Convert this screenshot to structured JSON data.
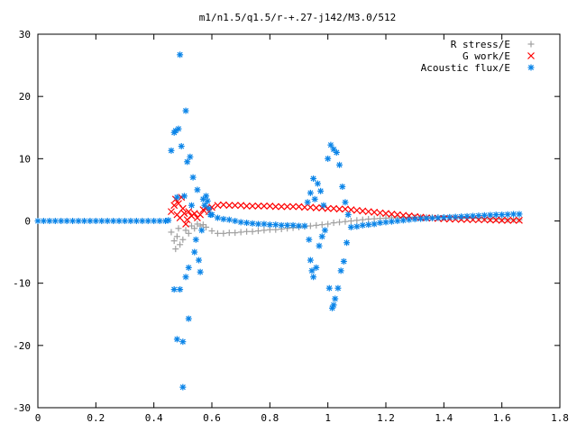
{
  "chart_data": {
    "type": "scatter",
    "title": "m1/n1.5/q1.5/r-+.27-j142/M3.0/512",
    "xlabel": "",
    "ylabel": "",
    "xlim": [
      0,
      1.8
    ],
    "ylim": [
      -30,
      30
    ],
    "x_ticks": [
      0,
      0.2,
      0.4,
      0.6,
      0.8,
      1,
      1.2,
      1.4,
      1.6,
      1.8
    ],
    "x_tick_labels": [
      "0",
      "0.2",
      "0.4",
      "0.6",
      "0.8",
      "1",
      "1.2",
      "1.4",
      "1.6",
      "1.8"
    ],
    "y_ticks": [
      -30,
      -20,
      -10,
      0,
      10,
      20,
      30
    ],
    "y_tick_labels": [
      "-30",
      "-20",
      "-10",
      "0",
      "10",
      "20",
      "30"
    ],
    "grid": false,
    "legend_position": "top-right",
    "series": [
      {
        "name": "R stress/E",
        "marker": "plus",
        "color": "#a0a0a0",
        "points": [
          [
            0.46,
            -1.8
          ],
          [
            0.47,
            -3.2
          ],
          [
            0.475,
            -4.5
          ],
          [
            0.48,
            -2.5
          ],
          [
            0.485,
            -1.2
          ],
          [
            0.49,
            -3.8
          ],
          [
            0.5,
            -3.0
          ],
          [
            0.51,
            -1.5
          ],
          [
            0.52,
            -2.0
          ],
          [
            0.53,
            -0.8
          ],
          [
            0.54,
            -1.2
          ],
          [
            0.55,
            -0.5
          ],
          [
            0.56,
            -0.8
          ],
          [
            0.57,
            -0.6
          ],
          [
            0.58,
            -1.0
          ],
          [
            0.6,
            -1.6
          ],
          [
            0.62,
            -2.0
          ],
          [
            0.64,
            -2.0
          ],
          [
            0.66,
            -1.9
          ],
          [
            0.68,
            -1.9
          ],
          [
            0.7,
            -1.8
          ],
          [
            0.72,
            -1.7
          ],
          [
            0.74,
            -1.7
          ],
          [
            0.76,
            -1.6
          ],
          [
            0.78,
            -1.5
          ],
          [
            0.8,
            -1.4
          ],
          [
            0.82,
            -1.4
          ],
          [
            0.84,
            -1.3
          ],
          [
            0.86,
            -1.2
          ],
          [
            0.88,
            -1.1
          ],
          [
            0.9,
            -1.0
          ],
          [
            0.92,
            -0.9
          ],
          [
            0.94,
            -0.8
          ],
          [
            0.96,
            -0.7
          ],
          [
            0.98,
            -0.6
          ],
          [
            1.0,
            -0.5
          ],
          [
            1.02,
            -0.3
          ],
          [
            1.04,
            -0.2
          ],
          [
            1.06,
            -0.1
          ],
          [
            1.08,
            0.0
          ],
          [
            1.1,
            0.1
          ],
          [
            1.12,
            0.2
          ],
          [
            1.14,
            0.3
          ],
          [
            1.16,
            0.35
          ],
          [
            1.18,
            0.4
          ],
          [
            1.2,
            0.45
          ],
          [
            1.22,
            0.5
          ],
          [
            1.24,
            0.5
          ],
          [
            1.26,
            0.55
          ],
          [
            1.28,
            0.6
          ],
          [
            1.3,
            0.6
          ],
          [
            1.32,
            0.6
          ],
          [
            1.34,
            0.6
          ],
          [
            1.36,
            0.6
          ],
          [
            1.38,
            0.6
          ],
          [
            1.4,
            0.6
          ],
          [
            1.42,
            0.6
          ],
          [
            1.44,
            0.55
          ],
          [
            1.46,
            0.5
          ],
          [
            1.48,
            0.5
          ],
          [
            1.5,
            0.45
          ],
          [
            1.52,
            0.4
          ],
          [
            1.54,
            0.35
          ],
          [
            1.56,
            0.3
          ],
          [
            1.58,
            0.3
          ],
          [
            1.6,
            0.25
          ],
          [
            1.62,
            0.2
          ],
          [
            1.64,
            0.2
          ],
          [
            1.66,
            0.2
          ]
        ]
      },
      {
        "name": "G work/E",
        "marker": "cross",
        "color": "#ff0000",
        "points": [
          [
            0.46,
            1.5
          ],
          [
            0.47,
            2.5
          ],
          [
            0.475,
            3.5
          ],
          [
            0.48,
            1.0
          ],
          [
            0.485,
            2.8
          ],
          [
            0.49,
            0.5
          ],
          [
            0.495,
            3.8
          ],
          [
            0.5,
            2.0
          ],
          [
            0.505,
            1.2
          ],
          [
            0.51,
            -0.5
          ],
          [
            0.515,
            0.2
          ],
          [
            0.52,
            1.5
          ],
          [
            0.53,
            0.8
          ],
          [
            0.54,
            1.2
          ],
          [
            0.55,
            0.5
          ],
          [
            0.56,
            1.0
          ],
          [
            0.57,
            1.8
          ],
          [
            0.58,
            2.0
          ],
          [
            0.59,
            1.5
          ],
          [
            0.6,
            2.2
          ],
          [
            0.62,
            2.5
          ],
          [
            0.64,
            2.6
          ],
          [
            0.66,
            2.5
          ],
          [
            0.68,
            2.5
          ],
          [
            0.7,
            2.5
          ],
          [
            0.72,
            2.4
          ],
          [
            0.74,
            2.4
          ],
          [
            0.76,
            2.4
          ],
          [
            0.78,
            2.4
          ],
          [
            0.8,
            2.4
          ],
          [
            0.82,
            2.3
          ],
          [
            0.84,
            2.3
          ],
          [
            0.86,
            2.3
          ],
          [
            0.88,
            2.3
          ],
          [
            0.9,
            2.3
          ],
          [
            0.92,
            2.2
          ],
          [
            0.94,
            2.2
          ],
          [
            0.96,
            2.1
          ],
          [
            0.98,
            2.1
          ],
          [
            1.0,
            2.0
          ],
          [
            1.02,
            2.0
          ],
          [
            1.04,
            1.9
          ],
          [
            1.06,
            1.9
          ],
          [
            1.08,
            1.8
          ],
          [
            1.1,
            1.7
          ],
          [
            1.12,
            1.6
          ],
          [
            1.14,
            1.5
          ],
          [
            1.16,
            1.4
          ],
          [
            1.18,
            1.3
          ],
          [
            1.2,
            1.2
          ],
          [
            1.22,
            1.1
          ],
          [
            1.24,
            1.0
          ],
          [
            1.26,
            0.9
          ],
          [
            1.28,
            0.8
          ],
          [
            1.3,
            0.7
          ],
          [
            1.32,
            0.6
          ],
          [
            1.34,
            0.5
          ],
          [
            1.36,
            0.45
          ],
          [
            1.38,
            0.4
          ],
          [
            1.4,
            0.35
          ],
          [
            1.42,
            0.3
          ],
          [
            1.44,
            0.3
          ],
          [
            1.46,
            0.25
          ],
          [
            1.48,
            0.25
          ],
          [
            1.5,
            0.2
          ],
          [
            1.52,
            0.2
          ],
          [
            1.54,
            0.2
          ],
          [
            1.56,
            0.15
          ],
          [
            1.58,
            0.15
          ],
          [
            1.6,
            0.1
          ],
          [
            1.62,
            0.1
          ],
          [
            1.64,
            0.1
          ],
          [
            1.66,
            0.1
          ]
        ]
      },
      {
        "name": "Acoustic flux/E",
        "marker": "star",
        "color": "#0a84e8",
        "points": [
          [
            0.0,
            0
          ],
          [
            0.02,
            0
          ],
          [
            0.04,
            0
          ],
          [
            0.06,
            0
          ],
          [
            0.08,
            0
          ],
          [
            0.1,
            0
          ],
          [
            0.12,
            0
          ],
          [
            0.14,
            0
          ],
          [
            0.16,
            0
          ],
          [
            0.18,
            0
          ],
          [
            0.2,
            0
          ],
          [
            0.22,
            0
          ],
          [
            0.24,
            0
          ],
          [
            0.26,
            0
          ],
          [
            0.28,
            0
          ],
          [
            0.3,
            0
          ],
          [
            0.32,
            0
          ],
          [
            0.34,
            0
          ],
          [
            0.36,
            0
          ],
          [
            0.38,
            0
          ],
          [
            0.4,
            0
          ],
          [
            0.42,
            0
          ],
          [
            0.44,
            0
          ],
          [
            0.45,
            0.1
          ],
          [
            0.46,
            11.3
          ],
          [
            0.47,
            14.2
          ],
          [
            0.47,
            -11.0
          ],
          [
            0.475,
            14.5
          ],
          [
            0.48,
            3.8
          ],
          [
            0.48,
            -19.0
          ],
          [
            0.485,
            14.8
          ],
          [
            0.49,
            26.7
          ],
          [
            0.49,
            -11.0
          ],
          [
            0.495,
            12.0
          ],
          [
            0.5,
            -19.4
          ],
          [
            0.5,
            -26.7
          ],
          [
            0.505,
            4.0
          ],
          [
            0.51,
            17.7
          ],
          [
            0.51,
            -9.0
          ],
          [
            0.515,
            9.5
          ],
          [
            0.52,
            -7.5
          ],
          [
            0.52,
            -15.7
          ],
          [
            0.525,
            10.3
          ],
          [
            0.53,
            2.5
          ],
          [
            0.535,
            7.0
          ],
          [
            0.54,
            -5.0
          ],
          [
            0.545,
            -3.0
          ],
          [
            0.55,
            5.0
          ],
          [
            0.555,
            -6.3
          ],
          [
            0.56,
            -8.2
          ],
          [
            0.565,
            -1.5
          ],
          [
            0.57,
            3.5
          ],
          [
            0.575,
            2.5
          ],
          [
            0.58,
            4.0
          ],
          [
            0.585,
            3.2
          ],
          [
            0.59,
            2.0
          ],
          [
            0.595,
            1.0
          ],
          [
            0.6,
            1.0
          ],
          [
            0.62,
            0.5
          ],
          [
            0.64,
            0.3
          ],
          [
            0.66,
            0.2
          ],
          [
            0.68,
            0.0
          ],
          [
            0.7,
            -0.2
          ],
          [
            0.72,
            -0.3
          ],
          [
            0.74,
            -0.4
          ],
          [
            0.76,
            -0.5
          ],
          [
            0.78,
            -0.5
          ],
          [
            0.8,
            -0.6
          ],
          [
            0.82,
            -0.6
          ],
          [
            0.84,
            -0.7
          ],
          [
            0.86,
            -0.7
          ],
          [
            0.88,
            -0.7
          ],
          [
            0.9,
            -0.8
          ],
          [
            0.92,
            -0.8
          ],
          [
            0.93,
            3.0
          ],
          [
            0.935,
            -3.0
          ],
          [
            0.94,
            4.5
          ],
          [
            0.94,
            -6.3
          ],
          [
            0.945,
            -8.0
          ],
          [
            0.95,
            6.8
          ],
          [
            0.95,
            -9.0
          ],
          [
            0.955,
            3.5
          ],
          [
            0.96,
            -7.5
          ],
          [
            0.965,
            6.0
          ],
          [
            0.97,
            -4.0
          ],
          [
            0.975,
            4.8
          ],
          [
            0.98,
            -2.5
          ],
          [
            0.985,
            2.5
          ],
          [
            0.99,
            -1.5
          ],
          [
            1.0,
            10.0
          ],
          [
            1.005,
            -10.8
          ],
          [
            1.01,
            12.2
          ],
          [
            1.015,
            -14.0
          ],
          [
            1.02,
            11.5
          ],
          [
            1.02,
            -13.5
          ],
          [
            1.025,
            -12.5
          ],
          [
            1.03,
            11.0
          ],
          [
            1.035,
            -10.8
          ],
          [
            1.04,
            9.0
          ],
          [
            1.045,
            -8.0
          ],
          [
            1.05,
            5.5
          ],
          [
            1.055,
            -6.5
          ],
          [
            1.06,
            3.0
          ],
          [
            1.065,
            -3.5
          ],
          [
            1.07,
            1.0
          ],
          [
            1.08,
            -1.0
          ],
          [
            1.1,
            -0.9
          ],
          [
            1.12,
            -0.7
          ],
          [
            1.14,
            -0.6
          ],
          [
            1.16,
            -0.5
          ],
          [
            1.18,
            -0.3
          ],
          [
            1.2,
            -0.2
          ],
          [
            1.22,
            -0.1
          ],
          [
            1.24,
            0.0
          ],
          [
            1.26,
            0.1
          ],
          [
            1.28,
            0.2
          ],
          [
            1.3,
            0.3
          ],
          [
            1.32,
            0.35
          ],
          [
            1.34,
            0.4
          ],
          [
            1.36,
            0.45
          ],
          [
            1.38,
            0.5
          ],
          [
            1.4,
            0.55
          ],
          [
            1.42,
            0.6
          ],
          [
            1.44,
            0.65
          ],
          [
            1.46,
            0.7
          ],
          [
            1.48,
            0.75
          ],
          [
            1.5,
            0.8
          ],
          [
            1.52,
            0.85
          ],
          [
            1.54,
            0.9
          ],
          [
            1.56,
            0.95
          ],
          [
            1.58,
            1.0
          ],
          [
            1.6,
            1.0
          ],
          [
            1.62,
            1.05
          ],
          [
            1.64,
            1.1
          ],
          [
            1.66,
            1.1
          ]
        ]
      }
    ]
  }
}
